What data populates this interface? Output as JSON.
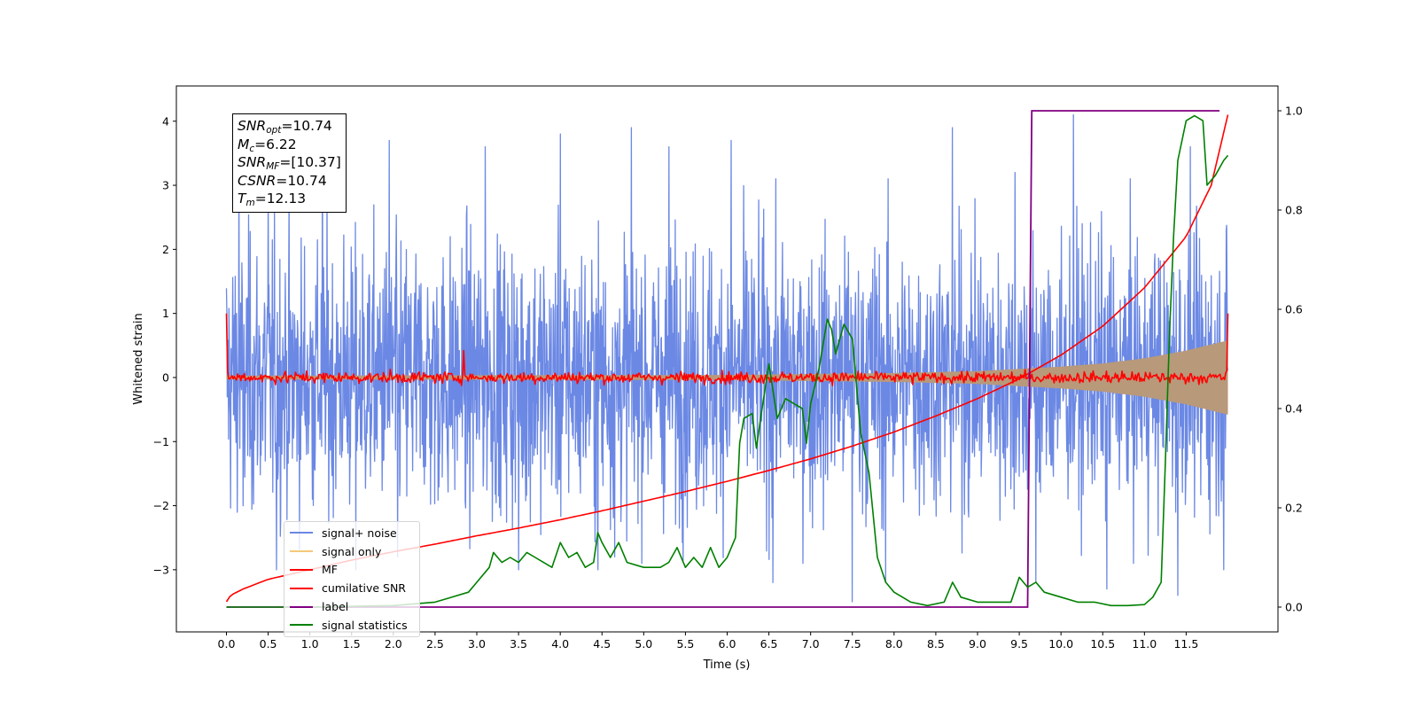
{
  "chart_data": {
    "type": "line",
    "xlabel": "Time (s)",
    "ylabel": "Whitened strain",
    "xlim": [
      -0.6,
      12.6
    ],
    "ylim": [
      -3.97,
      4.55
    ],
    "y2lim": [
      -0.05,
      1.05
    ],
    "xticks": [
      "0.0",
      "0.5",
      "1.0",
      "1.5",
      "2.0",
      "2.5",
      "3.0",
      "3.5",
      "4.0",
      "4.5",
      "5.0",
      "5.5",
      "6.0",
      "6.5",
      "7.0",
      "7.5",
      "8.0",
      "8.5",
      "9.0",
      "9.5",
      "10.0",
      "10.5",
      "11.0",
      "11.5"
    ],
    "yticks": [
      "−3",
      "−2",
      "−1",
      "0",
      "1",
      "2",
      "3",
      "4"
    ],
    "y2ticks": [
      "0.0",
      "0.2",
      "0.4",
      "0.6",
      "0.8",
      "1.0"
    ],
    "colors": {
      "signal_noise": "#6b88e4",
      "signal_only": "#f5c97a",
      "signal_overlap": "#b8997a",
      "mf": "#ff0000",
      "cumulative_snr": "#ff0000",
      "label": "#800080",
      "signal_statistics": "#008000"
    },
    "annotation": {
      "snr_opt": "=10.74",
      "mc": "=6.22",
      "snr_mf": "=[10.37]",
      "csnr": "=10.74",
      "tm": "=12.13"
    },
    "legend": [
      "signal+ noise",
      "signal only",
      "MF",
      "cumilative SNR",
      "label",
      "signal statistics"
    ],
    "series": [
      {
        "name": "signal+ noise",
        "axis": "left",
        "t_range": [
          0,
          12.0
        ],
        "envelope": "approx. Gaussian whitened noise, range about -3.5 to 4.1",
        "spikes": [
          [
            0.15,
            3.2
          ],
          [
            0.2,
            -2.0
          ],
          [
            0.5,
            2.9
          ],
          [
            0.6,
            -3.0
          ],
          [
            1.15,
            3.8
          ],
          [
            1.55,
            -3.0
          ],
          [
            1.95,
            3.7
          ],
          [
            2.05,
            -2.8
          ],
          [
            3.1,
            3.6
          ],
          [
            3.5,
            -3.0
          ],
          [
            4.0,
            3.8
          ],
          [
            4.45,
            -3.0
          ],
          [
            4.85,
            3.9
          ],
          [
            4.65,
            -2.8
          ],
          [
            5.3,
            3.6
          ],
          [
            6.05,
            3.7
          ],
          [
            6.55,
            -3.2
          ],
          [
            7.5,
            -3.5
          ],
          [
            7.9,
            -3.2
          ],
          [
            8.7,
            3.9
          ],
          [
            9.45,
            3.2
          ],
          [
            9.7,
            -3.2
          ],
          [
            10.15,
            4.1
          ],
          [
            10.55,
            -3.3
          ],
          [
            11.4,
            -3.4
          ],
          [
            11.55,
            3.6
          ],
          [
            11.95,
            -3.0
          ]
        ]
      },
      {
        "name": "signal only",
        "axis": "left",
        "t_range": [
          0,
          12.0
        ],
        "amplitude": [
          [
            0,
            0.03
          ],
          [
            6,
            0.04
          ],
          [
            8,
            0.07
          ],
          [
            9,
            0.1
          ],
          [
            10,
            0.17
          ],
          [
            10.5,
            0.22
          ],
          [
            11,
            0.3
          ],
          [
            11.5,
            0.42
          ],
          [
            12,
            0.58
          ]
        ]
      },
      {
        "name": "MF",
        "axis": "left",
        "t_range": [
          0,
          12.0
        ],
        "start_value": 1.0,
        "end_value": 1.0,
        "typical_range": [
          -0.15,
          0.15
        ]
      },
      {
        "name": "cumilative SNR",
        "axis": "left",
        "x": [
          0,
          0.05,
          0.2,
          0.5,
          1,
          1.5,
          2,
          2.5,
          3,
          3.5,
          4,
          4.5,
          5,
          5.5,
          6,
          6.5,
          7,
          7.5,
          8,
          8.5,
          9,
          9.5,
          10,
          10.5,
          11,
          11.5,
          11.8,
          12.0
        ],
        "y": [
          -3.5,
          -3.4,
          -3.3,
          -3.15,
          -3.0,
          -2.85,
          -2.72,
          -2.6,
          -2.47,
          -2.35,
          -2.22,
          -2.08,
          -1.93,
          -1.78,
          -1.62,
          -1.45,
          -1.27,
          -1.07,
          -0.85,
          -0.6,
          -0.33,
          -0.02,
          0.35,
          0.8,
          1.4,
          2.2,
          3.0,
          4.1
        ]
      },
      {
        "name": "label",
        "axis": "right",
        "x": [
          0,
          9.6,
          9.65,
          11.9
        ],
        "y": [
          0,
          0,
          1,
          1
        ]
      },
      {
        "name": "signal statistics",
        "axis": "right",
        "x": [
          0,
          1.0,
          2.0,
          2.5,
          2.9,
          3.0,
          3.1,
          3.15,
          3.2,
          3.3,
          3.4,
          3.5,
          3.6,
          3.7,
          3.8,
          3.9,
          4.0,
          4.1,
          4.2,
          4.3,
          4.4,
          4.45,
          4.5,
          4.6,
          4.7,
          4.8,
          5.0,
          5.2,
          5.3,
          5.4,
          5.5,
          5.6,
          5.7,
          5.8,
          5.9,
          6.0,
          6.1,
          6.15,
          6.2,
          6.3,
          6.35,
          6.4,
          6.5,
          6.6,
          6.7,
          6.8,
          6.9,
          6.95,
          7.0,
          7.1,
          7.2,
          7.25,
          7.3,
          7.4,
          7.5,
          7.6,
          7.7,
          7.8,
          7.9,
          8.0,
          8.2,
          8.4,
          8.6,
          8.7,
          8.8,
          9.0,
          9.2,
          9.4,
          9.5,
          9.6,
          9.7,
          9.8,
          10.0,
          10.2,
          10.4,
          10.6,
          10.8,
          11.0,
          11.1,
          11.2,
          11.25,
          11.3,
          11.35,
          11.4,
          11.5,
          11.6,
          11.7,
          11.75,
          11.85,
          11.95,
          12.0
        ],
        "y": [
          0.0,
          0.0,
          0.003,
          0.01,
          0.03,
          0.05,
          0.07,
          0.08,
          0.11,
          0.09,
          0.1,
          0.09,
          0.11,
          0.1,
          0.09,
          0.08,
          0.13,
          0.1,
          0.11,
          0.08,
          0.09,
          0.15,
          0.13,
          0.1,
          0.13,
          0.09,
          0.08,
          0.08,
          0.09,
          0.12,
          0.08,
          0.1,
          0.08,
          0.12,
          0.08,
          0.1,
          0.14,
          0.33,
          0.38,
          0.39,
          0.32,
          0.38,
          0.49,
          0.38,
          0.42,
          0.41,
          0.4,
          0.33,
          0.41,
          0.48,
          0.58,
          0.56,
          0.51,
          0.57,
          0.54,
          0.35,
          0.27,
          0.1,
          0.05,
          0.03,
          0.01,
          0.003,
          0.01,
          0.05,
          0.02,
          0.01,
          0.01,
          0.01,
          0.06,
          0.04,
          0.05,
          0.03,
          0.02,
          0.01,
          0.01,
          0.003,
          0.003,
          0.005,
          0.02,
          0.05,
          0.29,
          0.55,
          0.75,
          0.9,
          0.98,
          0.99,
          0.98,
          0.85,
          0.87,
          0.9,
          0.91
        ]
      }
    ]
  }
}
